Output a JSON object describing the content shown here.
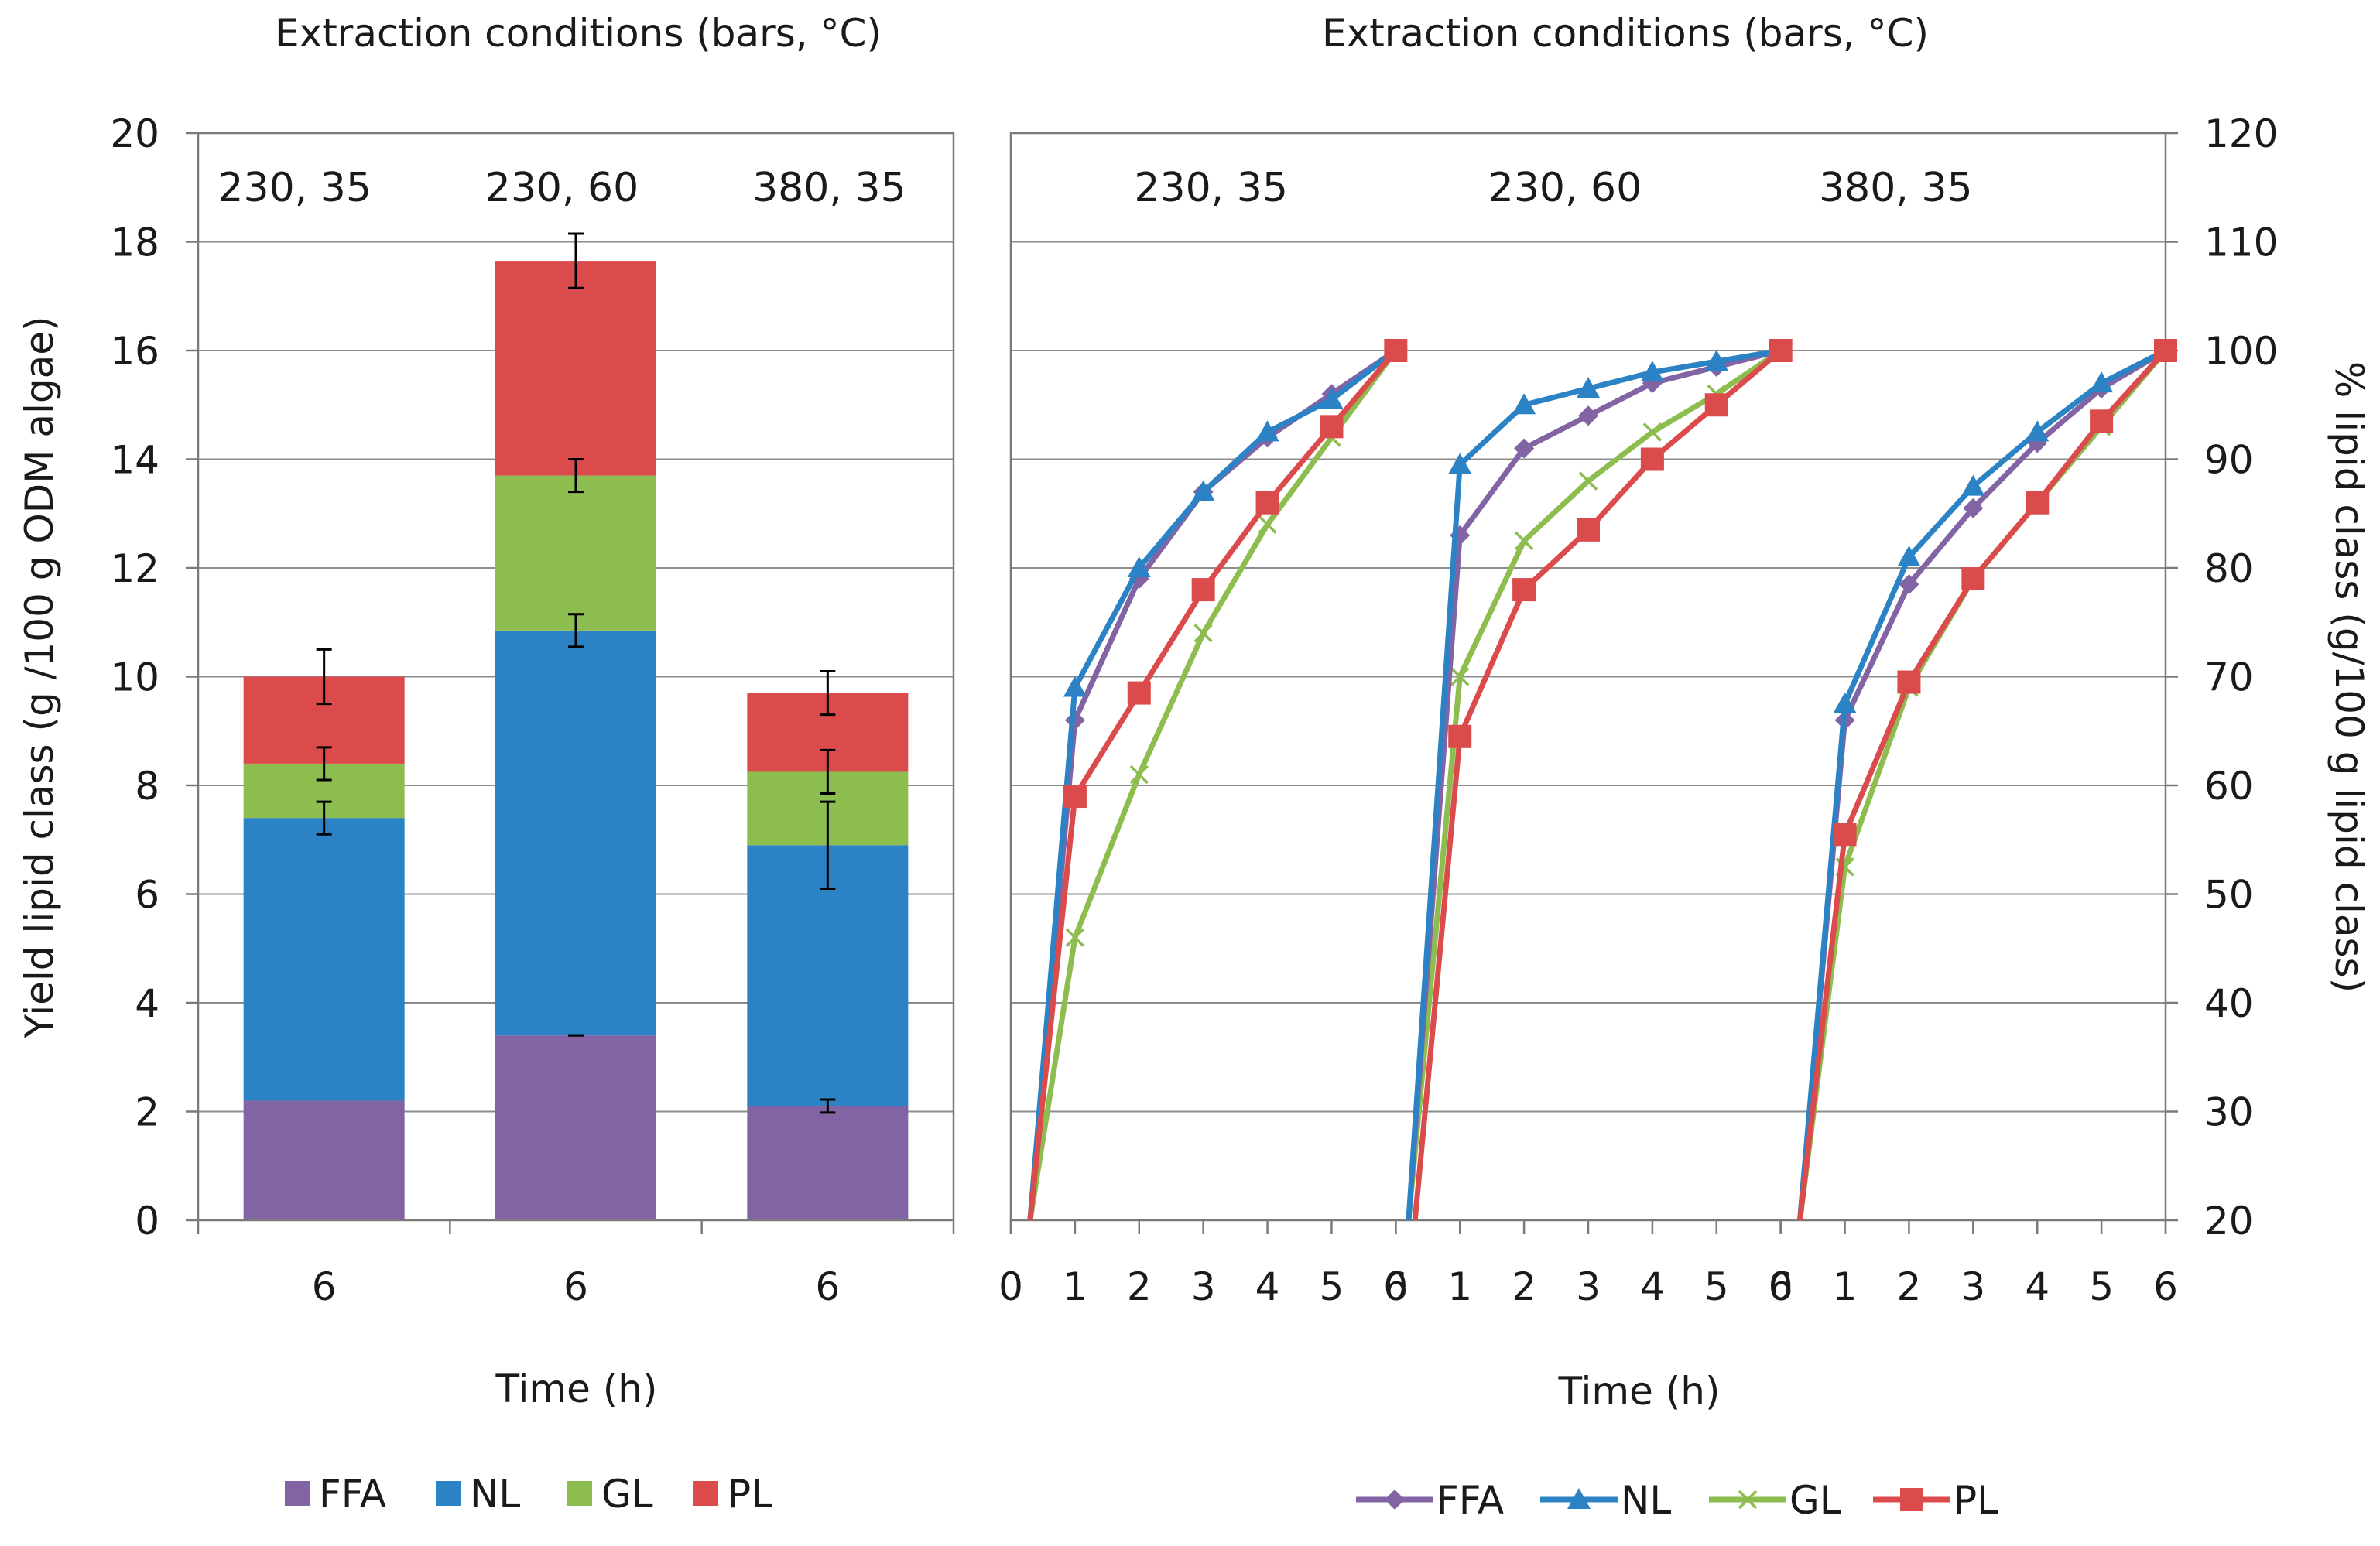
{
  "colors": {
    "FFA": "#8264a4",
    "NL": "#2b82c4",
    "GL": "#8cbd4e",
    "PL": "#db4b4b"
  },
  "chart_data": [
    {
      "type": "bar",
      "stacked": true,
      "title": "Extraction conditions (bars, °C)",
      "xlabel": "Time (h)",
      "ylabel": "Yield lipid class (g /100 g ODM algae)",
      "ylim": [
        0,
        20
      ],
      "yticks": [
        "0",
        "2",
        "4",
        "6",
        "8",
        "10",
        "12",
        "14",
        "16",
        "18",
        "20"
      ],
      "grid": true,
      "conditions": [
        "230, 35",
        "230, 60",
        "380, 35"
      ],
      "categories": [
        "6",
        "6",
        "6"
      ],
      "series": [
        {
          "name": "FFA",
          "values": [
            2.2,
            3.4,
            2.1
          ],
          "errors": [
            null,
            0.0,
            0.12
          ]
        },
        {
          "name": "NL",
          "values": [
            5.2,
            7.45,
            4.8
          ],
          "errors": [
            0.3,
            0.3,
            0.8
          ]
        },
        {
          "name": "GL",
          "values": [
            1.0,
            2.85,
            1.35
          ],
          "errors": [
            0.3,
            0.3,
            0.4
          ]
        },
        {
          "name": "PL",
          "values": [
            1.6,
            3.95,
            1.45
          ],
          "errors": [
            0.5,
            0.5,
            0.4
          ]
        }
      ],
      "legend": [
        "FFA",
        "NL",
        "GL",
        "PL"
      ],
      "legend_position": "bottom"
    },
    {
      "type": "line",
      "title": "Extraction conditions (bars, °C)",
      "xlabel": "Time (h)",
      "ylabel": "% lipid class (g/100 g lipid class)",
      "ylim": [
        20,
        120
      ],
      "yticks": [
        "20",
        "30",
        "40",
        "50",
        "60",
        "70",
        "80",
        "90",
        "100",
        "110",
        "120"
      ],
      "grid": true,
      "xticks": [
        "0",
        "1",
        "2",
        "3",
        "4",
        "5",
        "6"
      ],
      "panels": [
        {
          "condition": "230, 35",
          "series": [
            {
              "name": "FFA",
              "x": [
                0.3,
                1,
                2,
                3,
                4,
                5,
                6
              ],
              "y": [
                20,
                66,
                79,
                87,
                92,
                96,
                100
              ]
            },
            {
              "name": "NL",
              "x": [
                0.3,
                1,
                2,
                3,
                4,
                5,
                6
              ],
              "y": [
                20,
                69,
                80,
                87,
                92.5,
                95.5,
                100
              ]
            },
            {
              "name": "GL",
              "x": [
                0.3,
                1,
                2,
                3,
                4,
                5,
                6
              ],
              "y": [
                20,
                46,
                61,
                74,
                84,
                92,
                100
              ]
            },
            {
              "name": "PL",
              "x": [
                0.3,
                1,
                2,
                3,
                4,
                5,
                6
              ],
              "y": [
                20,
                59,
                68.5,
                78,
                86,
                93,
                100
              ]
            }
          ]
        },
        {
          "condition": "230, 60",
          "series": [
            {
              "name": "FFA",
              "x": [
                0.2,
                1,
                2,
                3,
                4,
                5,
                6
              ],
              "y": [
                20,
                83,
                91,
                94,
                97,
                98.5,
                100
              ]
            },
            {
              "name": "NL",
              "x": [
                0.2,
                1,
                2,
                3,
                4,
                5,
                6
              ],
              "y": [
                20,
                89.5,
                95,
                96.5,
                98,
                99,
                100
              ]
            },
            {
              "name": "GL",
              "x": [
                0.2,
                1,
                2,
                3,
                4,
                5,
                6
              ],
              "y": [
                20,
                70,
                82.5,
                88,
                92.5,
                96,
                100
              ]
            },
            {
              "name": "PL",
              "x": [
                0.3,
                1,
                2,
                3,
                4,
                5,
                6
              ],
              "y": [
                20,
                64.5,
                78,
                83.5,
                90,
                95,
                100
              ]
            }
          ]
        },
        {
          "condition": "380, 35",
          "series": [
            {
              "name": "FFA",
              "x": [
                0.3,
                1,
                2,
                3,
                4,
                5,
                6
              ],
              "y": [
                20,
                66,
                78.5,
                85.5,
                91.5,
                96.5,
                100
              ]
            },
            {
              "name": "NL",
              "x": [
                0.3,
                1,
                2,
                3,
                4,
                5,
                6
              ],
              "y": [
                20,
                67.5,
                81,
                87.5,
                92.5,
                97,
                100
              ]
            },
            {
              "name": "GL",
              "x": [
                0.3,
                1,
                2,
                3,
                4,
                5,
                6
              ],
              "y": [
                20,
                52.5,
                69,
                79,
                86,
                93,
                100
              ]
            },
            {
              "name": "PL",
              "x": [
                0.3,
                1,
                2,
                3,
                4,
                5,
                6
              ],
              "y": [
                20,
                55.5,
                69.5,
                79,
                86,
                93.5,
                100
              ]
            }
          ]
        }
      ],
      "legend": [
        "FFA",
        "NL",
        "GL",
        "PL"
      ],
      "legend_position": "bottom"
    }
  ]
}
